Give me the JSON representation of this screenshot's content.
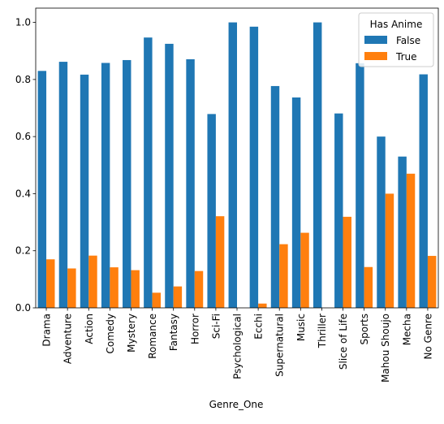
{
  "chart_data": {
    "type": "bar",
    "title": "",
    "xlabel": "Genre_One",
    "ylabel": "",
    "ylim": [
      0,
      1.05
    ],
    "yticks": [
      0.0,
      0.2,
      0.4,
      0.6,
      0.8,
      1.0
    ],
    "ytick_labels": [
      "0.0",
      "0.2",
      "0.4",
      "0.6",
      "0.8",
      "1.0"
    ],
    "grid": false,
    "legend_placement": "top-right",
    "legend_title": "Has Anime",
    "categories": [
      "Drama",
      "Adventure",
      "Action",
      "Comedy",
      "Mystery",
      "Romance",
      "Fantasy",
      "Horror",
      "Sci-Fi",
      "Psychological",
      "Ecchi",
      "Supernatural",
      "Music",
      "Thriller",
      "Slice of Life",
      "Sports",
      "Mahou Shoujo",
      "Mecha",
      "No Genre"
    ],
    "series": [
      {
        "name": "False",
        "color": "#1f77b4",
        "values": [
          0.83,
          0.862,
          0.817,
          0.858,
          0.868,
          0.947,
          0.925,
          0.871,
          0.679,
          1.0,
          0.985,
          0.777,
          0.737,
          1.0,
          0.681,
          0.857,
          0.6,
          0.53,
          0.818
        ]
      },
      {
        "name": "True",
        "color": "#ff7f0e",
        "values": [
          0.17,
          0.138,
          0.183,
          0.142,
          0.132,
          0.053,
          0.075,
          0.129,
          0.321,
          0.0,
          0.015,
          0.223,
          0.263,
          0.0,
          0.319,
          0.143,
          0.4,
          0.47,
          0.182
        ]
      }
    ]
  }
}
